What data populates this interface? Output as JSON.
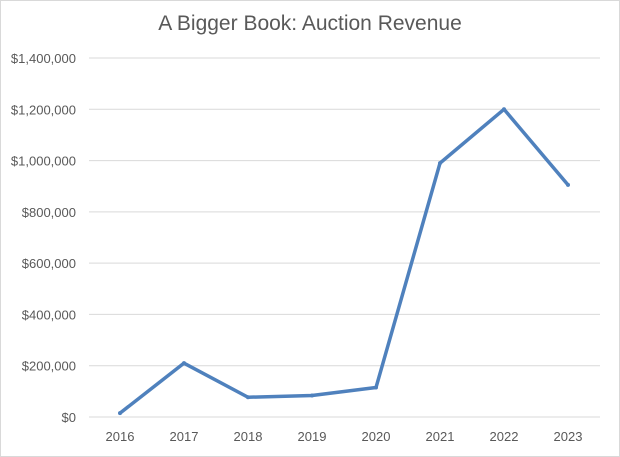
{
  "chart_data": {
    "type": "line",
    "title": "A Bigger Book: Auction Revenue",
    "xlabel": "",
    "ylabel": "",
    "categories": [
      "2016",
      "2017",
      "2018",
      "2019",
      "2020",
      "2021",
      "2022",
      "2023"
    ],
    "series": [
      {
        "values": [
          15000,
          210000,
          77000,
          84000,
          115000,
          990000,
          1200000,
          905000
        ]
      }
    ],
    "ylim": [
      0,
      1400000
    ],
    "yticks": [
      0,
      200000,
      400000,
      600000,
      800000,
      1000000,
      1200000,
      1400000
    ],
    "ytick_labels": [
      "$0",
      "$200,000",
      "$400,000",
      "$600,000",
      "$800,000",
      "$1,000,000",
      "$1,200,000",
      "$1,400,000"
    ],
    "grid": true,
    "legend": "none",
    "colors": {
      "line": "#4f81bd",
      "grid": "#d9d9d9",
      "text": "#595959"
    }
  }
}
